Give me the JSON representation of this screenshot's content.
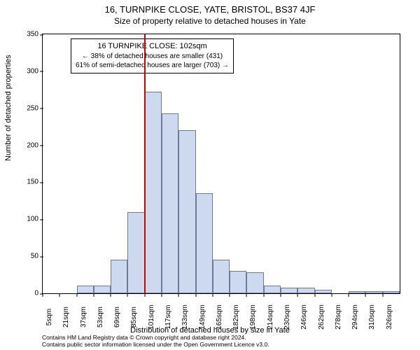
{
  "title": "16, TURNPIKE CLOSE, YATE, BRISTOL, BS37 4JF",
  "subtitle": "Size of property relative to detached houses in Yate",
  "y_axis_label": "Number of detached properties",
  "x_axis_label": "Distribution of detached houses by size in Yate",
  "footer_line1": "Contains HM Land Registry data © Crown copyright and database right 2024.",
  "footer_line2": "Contains public sector information licensed under the Open Government Licence v3.0.",
  "chart": {
    "type": "histogram",
    "ylim": [
      0,
      350
    ],
    "ytick_step": 50,
    "y_ticks": [
      0,
      50,
      100,
      150,
      200,
      250,
      300,
      350
    ],
    "x_ticks": [
      "5sqm",
      "21sqm",
      "37sqm",
      "53sqm",
      "69sqm",
      "85sqm",
      "101sqm",
      "117sqm",
      "133sqm",
      "149sqm",
      "165sqm",
      "182sqm",
      "198sqm",
      "214sqm",
      "230sqm",
      "246sqm",
      "262sqm",
      "278sqm",
      "294sqm",
      "310sqm",
      "326sqm"
    ],
    "bars": [
      {
        "value": 0
      },
      {
        "value": 0
      },
      {
        "value": 10
      },
      {
        "value": 10
      },
      {
        "value": 45
      },
      {
        "value": 110
      },
      {
        "value": 272
      },
      {
        "value": 243
      },
      {
        "value": 220
      },
      {
        "value": 135
      },
      {
        "value": 45
      },
      {
        "value": 30
      },
      {
        "value": 28
      },
      {
        "value": 10
      },
      {
        "value": 8
      },
      {
        "value": 8
      },
      {
        "value": 5
      },
      {
        "value": 0
      },
      {
        "value": 3
      },
      {
        "value": 3
      },
      {
        "value": 3
      }
    ],
    "bar_fill": "#ccd9ee",
    "bar_stroke": "#6c7a99",
    "marker_color": "#cc0000",
    "marker_index": 6,
    "background_color": "#ffffff"
  },
  "info_box": {
    "line1": "16 TURNPIKE CLOSE: 102sqm",
    "line2": "← 38% of detached houses are smaller (431)",
    "line3": "61% of semi-detached houses are larger (703) →"
  }
}
